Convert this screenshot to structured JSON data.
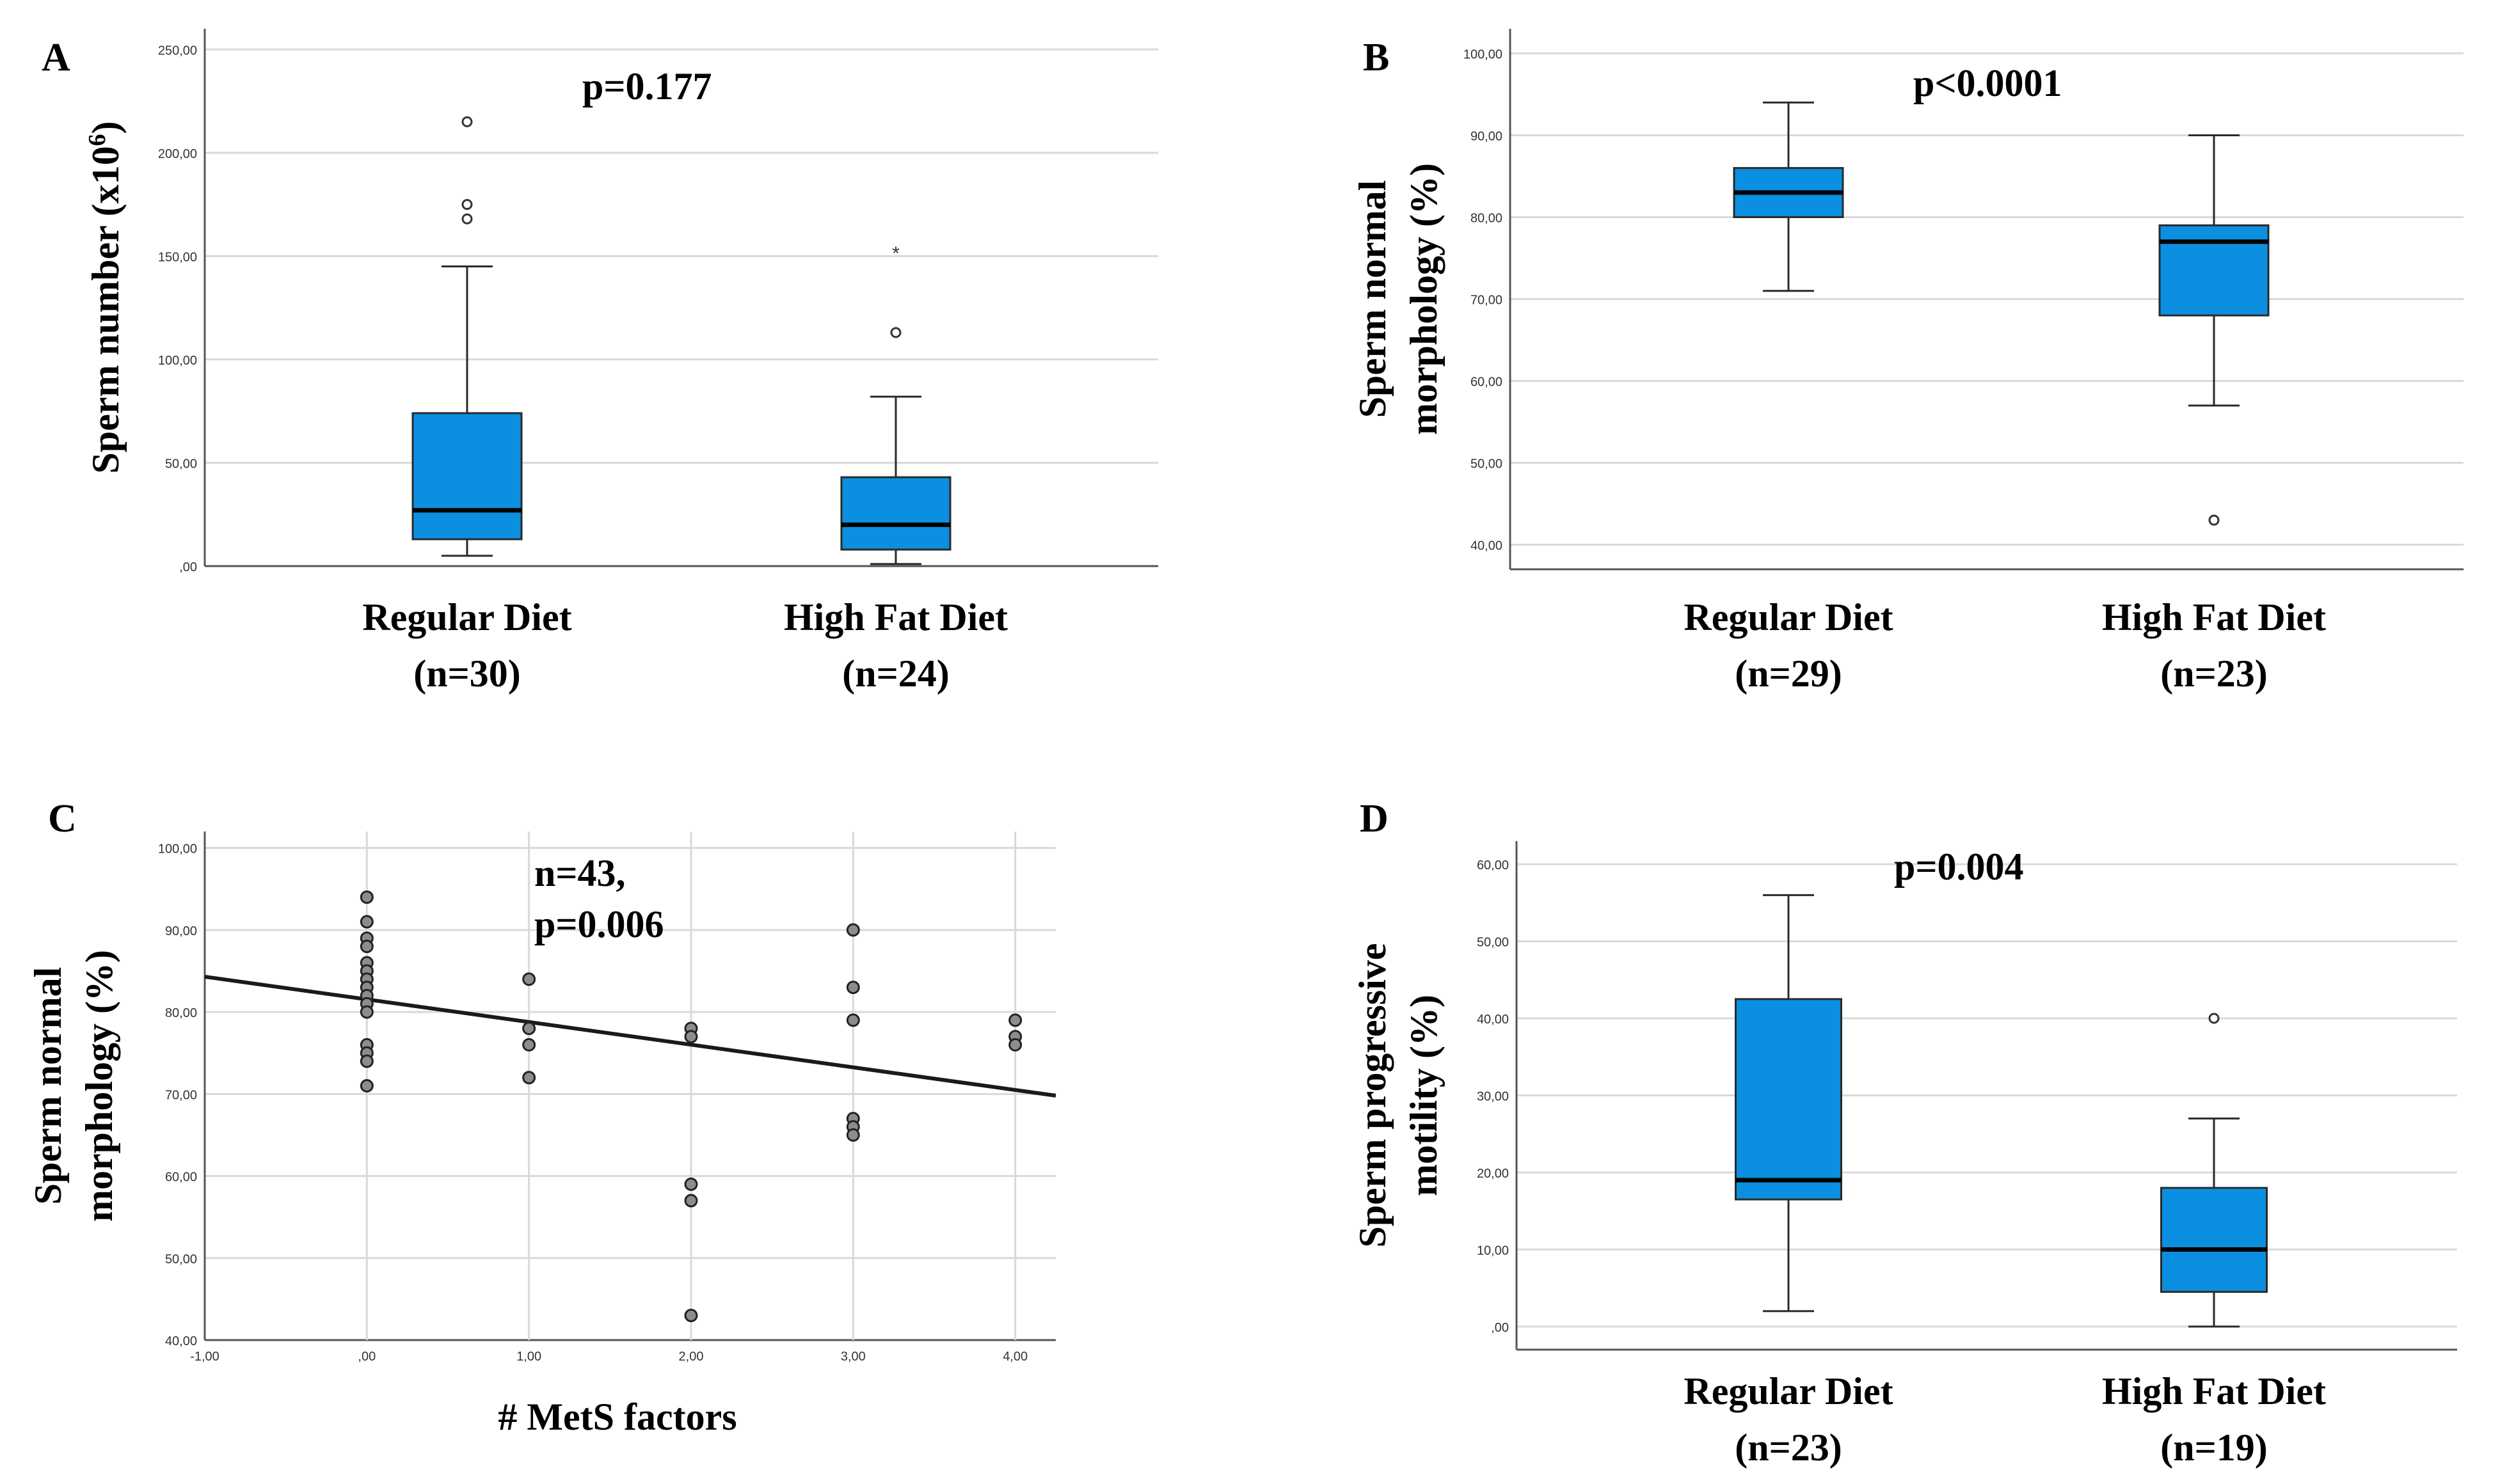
{
  "colors": {
    "box_fill": "#0b8fe0",
    "box_stroke": "#2a2a2a",
    "grid": "#d9d9d9",
    "axis": "#555555",
    "text": "#000000",
    "point_fill": "#8c8c8c",
    "fit_line": "#1a1a1a"
  },
  "chart_data": [
    {
      "panel": "A",
      "type": "box",
      "ylabel": "Sperm number (x10",
      "ylabel_sup": "6",
      "ylabel_end": ")",
      "annotation": "p=0.177",
      "ylim": [
        0,
        260
      ],
      "yticks": [
        0,
        50,
        100,
        150,
        200,
        250
      ],
      "ytick_labels": [
        ",00",
        "50,00",
        "100,00",
        "150,00",
        "200,00",
        "250,00"
      ],
      "groups": [
        {
          "label": "Regular Diet",
          "n_label": "(n=30)",
          "whisker_low": 5,
          "q1": 13,
          "median": 27,
          "q3": 74,
          "whisker_high": 145,
          "outliers": [
            168,
            175,
            215
          ],
          "extremes": []
        },
        {
          "label": "High Fat Diet",
          "n_label": "(n=24)",
          "whisker_low": 1,
          "q1": 8,
          "median": 20,
          "q3": 43,
          "whisker_high": 82,
          "outliers": [
            113
          ],
          "extremes": [
            152
          ]
        }
      ]
    },
    {
      "panel": "B",
      "type": "box",
      "ylabel_lines": [
        "Sperm normal",
        "morphology (%)"
      ],
      "annotation": "p<0.0001",
      "ylim": [
        37,
        103
      ],
      "yticks": [
        40,
        50,
        60,
        70,
        80,
        90,
        100
      ],
      "ytick_labels": [
        "40,00",
        "50,00",
        "60,00",
        "70,00",
        "80,00",
        "90,00",
        "100,00"
      ],
      "groups": [
        {
          "label": "Regular Diet",
          "n_label": "(n=29)",
          "whisker_low": 71,
          "q1": 80,
          "median": 83,
          "q3": 86,
          "whisker_high": 94,
          "outliers": [],
          "extremes": []
        },
        {
          "label": "High Fat Diet",
          "n_label": "(n=23)",
          "whisker_low": 57,
          "q1": 68,
          "median": 77,
          "q3": 79,
          "whisker_high": 90,
          "outliers": [
            43
          ],
          "extremes": []
        }
      ]
    },
    {
      "panel": "C",
      "type": "scatter",
      "xlabel": "# MetS factors",
      "ylabel_lines": [
        "Sperm normal",
        "morphology (%)"
      ],
      "annotation_lines": [
        "n=43,",
        "p=0.006"
      ],
      "xlim": [
        -1,
        4.25
      ],
      "ylim": [
        40,
        102
      ],
      "xticks": [
        -1,
        0,
        1,
        2,
        3,
        4
      ],
      "xtick_labels": [
        "-1,00",
        ",00",
        "1,00",
        "2,00",
        "3,00",
        "4,00"
      ],
      "yticks": [
        40,
        50,
        60,
        70,
        80,
        90,
        100
      ],
      "ytick_labels": [
        "40,00",
        "50,00",
        "60,00",
        "70,00",
        "80,00",
        "90,00",
        "100,00"
      ],
      "points": [
        [
          0,
          94
        ],
        [
          0,
          91
        ],
        [
          0,
          89
        ],
        [
          0,
          88
        ],
        [
          0,
          86
        ],
        [
          0,
          85
        ],
        [
          0,
          84
        ],
        [
          0,
          83
        ],
        [
          0,
          82
        ],
        [
          0,
          81
        ],
        [
          0,
          80
        ],
        [
          0,
          76
        ],
        [
          0,
          75
        ],
        [
          0,
          74
        ],
        [
          0,
          71
        ],
        [
          1,
          84
        ],
        [
          1,
          78
        ],
        [
          1,
          76
        ],
        [
          1,
          72
        ],
        [
          2,
          78
        ],
        [
          2,
          77
        ],
        [
          2,
          59
        ],
        [
          2,
          57
        ],
        [
          2,
          43
        ],
        [
          3,
          90
        ],
        [
          3,
          83
        ],
        [
          3,
          79
        ],
        [
          3,
          67
        ],
        [
          3,
          66
        ],
        [
          3,
          65
        ],
        [
          4,
          79
        ],
        [
          4,
          77
        ],
        [
          4,
          76
        ]
      ],
      "fit_line": {
        "x": [
          -1,
          4.25
        ],
        "y": [
          84.3,
          69.8
        ]
      }
    },
    {
      "panel": "D",
      "type": "box",
      "ylabel_lines": [
        "Sperm progressive",
        "motility (%)"
      ],
      "annotation": "p=0.004",
      "ylim": [
        -3,
        63
      ],
      "yticks": [
        0,
        10,
        20,
        30,
        40,
        50,
        60
      ],
      "ytick_labels": [
        ",00",
        "10,00",
        "20,00",
        "30,00",
        "40,00",
        "50,00",
        "60,00"
      ],
      "groups": [
        {
          "label": "Regular Diet",
          "n_label": "(n=23)",
          "whisker_low": 2,
          "q1": 16.5,
          "median": 19,
          "q3": 42.5,
          "whisker_high": 56,
          "outliers": [],
          "extremes": []
        },
        {
          "label": "High Fat Diet",
          "n_label": "(n=19)",
          "whisker_low": 0,
          "q1": 4.5,
          "median": 10,
          "q3": 18,
          "whisker_high": 27,
          "outliers": [
            40
          ],
          "extremes": []
        }
      ]
    }
  ]
}
